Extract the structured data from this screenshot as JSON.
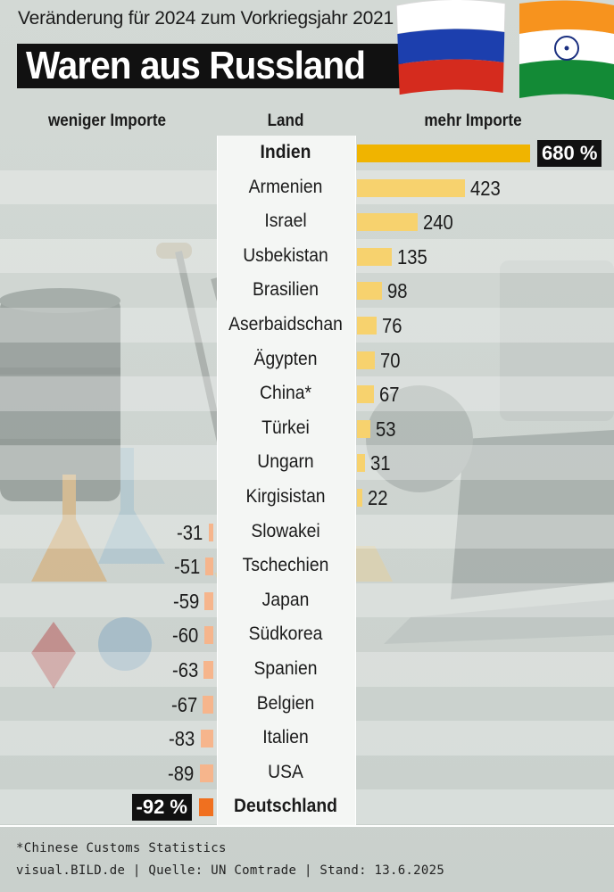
{
  "header": {
    "subtitle": "Veränderung für 2024 zum Vorkriegsjahr 2021",
    "title": "Waren aus Russland",
    "col_less": "weniger Importe",
    "col_land": "Land",
    "col_more": "mehr Importe"
  },
  "colors": {
    "highlight_positive": "#f0b400",
    "positive": "#f7d26e",
    "highlight_negative": "#f0701f",
    "negative": "#f6b58c",
    "center_panel": "#f4f6f4"
  },
  "illustration_icons": [
    "oil-barrel-icon",
    "oil-pump-icon",
    "flask-icon",
    "gemstone-icon",
    "gold-bar-icon",
    "laptop-icon",
    "engine-icon"
  ],
  "chart_data": {
    "type": "bar",
    "title": "Waren aus Russland",
    "subtitle": "Veränderung für 2024 zum Vorkriegsjahr 2021",
    "categories": [
      "Indien",
      "Armenien",
      "Israel",
      "Usbekistan",
      "Brasilien",
      "Aserbaidschan",
      "Ägypten",
      "China*",
      "Türkei",
      "Ungarn",
      "Kirgisistan",
      "Slowakei",
      "Tschechien",
      "Japan",
      "Südkorea",
      "Spanien",
      "Belgien",
      "Italien",
      "USA",
      "Deutschland"
    ],
    "values": [
      680,
      423,
      240,
      135,
      98,
      76,
      70,
      67,
      53,
      31,
      22,
      -31,
      -51,
      -59,
      -60,
      -63,
      -67,
      -83,
      -89,
      -92
    ],
    "labels": [
      "680 %",
      "423",
      "240",
      "135",
      "98",
      "76",
      "70",
      "67",
      "53",
      "31",
      "22",
      "-31",
      "-51",
      "-59",
      "-60",
      "-63",
      "-67",
      "-83",
      "-89",
      "-92 %"
    ],
    "highlighted": [
      "Indien",
      "Deutschland"
    ],
    "unit": "%",
    "orientation": "horizontal-diverging",
    "xlabel_negative": "weniger Importe",
    "xlabel_positive": "mehr Importe",
    "center_label": "Land"
  },
  "footer": {
    "note": "*Chinese Customs Statistics",
    "source": "visual.BILD.de | Quelle: UN Comtrade | Stand: 13.6.2025"
  }
}
